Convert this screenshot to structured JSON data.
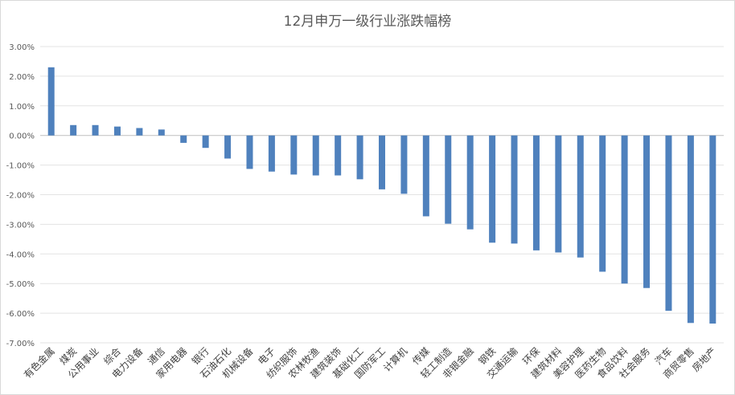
{
  "chart_data": {
    "type": "bar",
    "title": "12月申万一级行业涨跌幅榜",
    "xlabel": "",
    "ylabel": "",
    "ylim": [
      -7.0,
      3.0
    ],
    "y_ticks": [
      "3.00%",
      "2.00%",
      "1.00%",
      "0.00%",
      "-1.00%",
      "-2.00%",
      "-3.00%",
      "-4.00%",
      "-5.00%",
      "-6.00%",
      "-7.00%"
    ],
    "grid": true,
    "legend": "none",
    "bar_color": "#4f81bd",
    "categories": [
      "有色金属",
      "煤炭",
      "公用事业",
      "综合",
      "电力设备",
      "通信",
      "家用电器",
      "银行",
      "石油石化",
      "机械设备",
      "电子",
      "纺织服饰",
      "农林牧渔",
      "建筑装饰",
      "基础化工",
      "国防军工",
      "计算机",
      "传媒",
      "轻工制造",
      "非银金融",
      "钢铁",
      "交通运输",
      "环保",
      "建筑材料",
      "美容护理",
      "医药生物",
      "食品饮料",
      "社会服务",
      "汽车",
      "商贸零售",
      "房地产"
    ],
    "values": [
      2.3,
      0.35,
      0.35,
      0.3,
      0.25,
      0.2,
      -0.25,
      -0.42,
      -0.78,
      -1.13,
      -1.22,
      -1.32,
      -1.35,
      -1.35,
      -1.48,
      -1.82,
      -1.97,
      -2.73,
      -2.98,
      -3.17,
      -3.62,
      -3.65,
      -3.88,
      -3.95,
      -4.12,
      -4.6,
      -5.0,
      -5.15,
      -5.92,
      -6.33,
      -6.35
    ]
  }
}
